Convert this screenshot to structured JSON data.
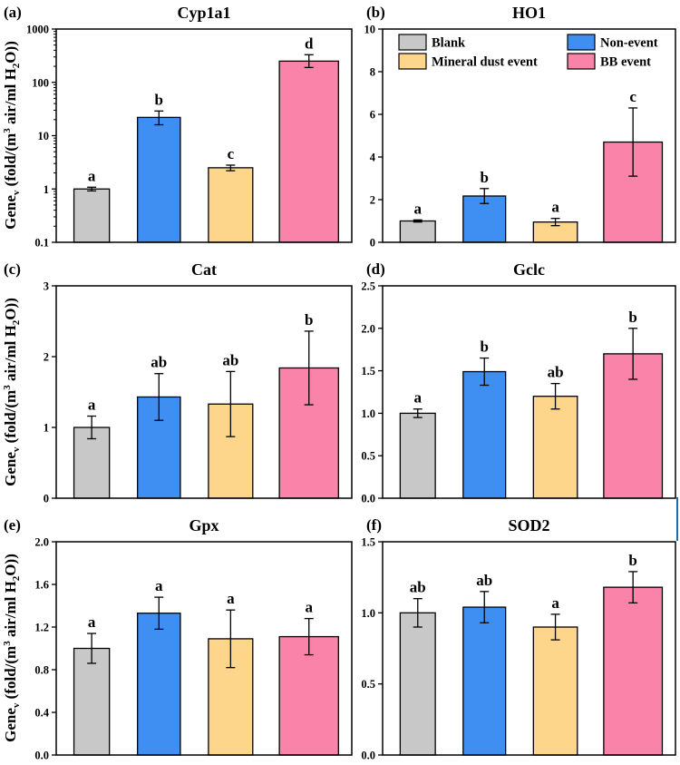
{
  "figure": {
    "y_axis_label_parts": [
      "Gene",
      "v",
      " (fold/(m",
      "3",
      " air/ml H",
      "2",
      "O))"
    ],
    "legend": [
      {
        "label": "Blank",
        "color": "#c8c8c8"
      },
      {
        "label": "Non-event",
        "color": "#3f8ff2"
      },
      {
        "label": "Mineral dust event",
        "color": "#fdd58b"
      },
      {
        "label": "BB event",
        "color": "#f983a9"
      }
    ]
  },
  "chart_data": [
    {
      "panel": "(a)",
      "title": "Cyp1a1",
      "type": "bar",
      "scale": "log",
      "categories": [
        "Blank",
        "Non-event",
        "Mineral dust event",
        "BB event"
      ],
      "values": [
        1.0,
        22,
        2.5,
        250
      ],
      "err_low": [
        0.92,
        16,
        2.2,
        190
      ],
      "err_high": [
        1.08,
        29,
        2.8,
        330
      ],
      "letters": [
        "a",
        "b",
        "c",
        "d"
      ],
      "ylim": [
        0.1,
        1000
      ],
      "ticks": [
        0.1,
        1,
        10,
        100,
        1000
      ],
      "tick_labels": [
        "0.1",
        "1",
        "10",
        "100",
        "1000"
      ]
    },
    {
      "panel": "(b)",
      "title": "HO1",
      "type": "bar",
      "scale": "linear",
      "categories": [
        "Blank",
        "Non-event",
        "Mineral dust event",
        "BB event"
      ],
      "values": [
        1.0,
        2.17,
        0.95,
        4.7
      ],
      "err_low": [
        0.95,
        1.82,
        0.78,
        3.1
      ],
      "err_high": [
        1.05,
        2.52,
        1.12,
        6.3
      ],
      "letters": [
        "a",
        "b",
        "a",
        "c"
      ],
      "ylim": [
        0,
        10
      ],
      "ticks": [
        0,
        2,
        4,
        6,
        8,
        10
      ],
      "tick_labels": [
        "0",
        "2",
        "4",
        "6",
        "8",
        "10"
      ]
    },
    {
      "panel": "(c)",
      "title": "Cat",
      "type": "bar",
      "scale": "linear",
      "categories": [
        "Blank",
        "Non-event",
        "Mineral dust event",
        "BB event"
      ],
      "values": [
        1.0,
        1.43,
        1.33,
        1.84
      ],
      "err_low": [
        0.84,
        1.1,
        0.87,
        1.32
      ],
      "err_high": [
        1.16,
        1.76,
        1.79,
        2.36
      ],
      "letters": [
        "a",
        "ab",
        "ab",
        "b"
      ],
      "ylim": [
        0,
        3
      ],
      "ticks": [
        0,
        1,
        2,
        3
      ],
      "tick_labels": [
        "0",
        "1",
        "2",
        "3"
      ]
    },
    {
      "panel": "(d)",
      "title": "Gclc",
      "type": "bar",
      "scale": "linear",
      "categories": [
        "Blank",
        "Non-event",
        "Mineral dust event",
        "BB event"
      ],
      "values": [
        1.0,
        1.49,
        1.2,
        1.7
      ],
      "err_low": [
        0.95,
        1.33,
        1.05,
        1.4
      ],
      "err_high": [
        1.05,
        1.65,
        1.35,
        2.0
      ],
      "letters": [
        "a",
        "b",
        "ab",
        "b"
      ],
      "ylim": [
        0,
        2.5
      ],
      "ticks": [
        0,
        0.5,
        1.0,
        1.5,
        2.0,
        2.5
      ],
      "tick_labels": [
        "0.0",
        "0.5",
        "1.0",
        "1.5",
        "2.0",
        "2.5"
      ]
    },
    {
      "panel": "(e)",
      "title": "Gpx",
      "type": "bar",
      "scale": "linear",
      "categories": [
        "Blank",
        "Non-event",
        "Mineral dust event",
        "BB event"
      ],
      "values": [
        1.0,
        1.33,
        1.09,
        1.11
      ],
      "err_low": [
        0.86,
        1.18,
        0.82,
        0.94
      ],
      "err_high": [
        1.14,
        1.48,
        1.36,
        1.28
      ],
      "letters": [
        "a",
        "a",
        "a",
        "a"
      ],
      "ylim": [
        0,
        2.0
      ],
      "ticks": [
        0,
        0.4,
        0.8,
        1.2,
        1.6,
        2.0
      ],
      "tick_labels": [
        "0.0",
        "0.4",
        "0.8",
        "1.2",
        "1.6",
        "2.0"
      ]
    },
    {
      "panel": "(f)",
      "title": "SOD2",
      "type": "bar",
      "scale": "linear",
      "categories": [
        "Blank",
        "Non-event",
        "Mineral dust event",
        "BB event"
      ],
      "values": [
        1.0,
        1.04,
        0.9,
        1.18
      ],
      "err_low": [
        0.9,
        0.93,
        0.81,
        1.07
      ],
      "err_high": [
        1.1,
        1.15,
        0.99,
        1.29
      ],
      "letters": [
        "ab",
        "ab",
        "a",
        "b"
      ],
      "ylim": [
        0,
        1.5
      ],
      "ticks": [
        0,
        0.5,
        1.0,
        1.5
      ],
      "tick_labels": [
        "0.0",
        "0.5",
        "1.0",
        "1.5"
      ]
    }
  ]
}
